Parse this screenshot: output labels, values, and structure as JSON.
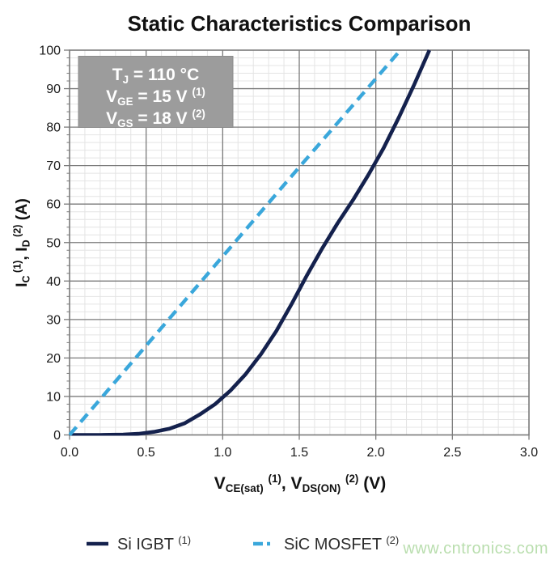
{
  "title": "Static Characteristics Comparison",
  "watermark": {
    "text": "www.cntronics.com",
    "color": "#a8d69a"
  },
  "colors": {
    "si_igbt": "#14214d",
    "sic_mosfet": "#3aa7db",
    "grid_minor": "#e4e4e4",
    "grid_major": "#7a7a7a",
    "plot_border": "#7a7a7a",
    "annotation_bg": "#9c9c9c",
    "annotation_text": "#ffffff",
    "tick_label": "#1a1a1a",
    "axis_title": "#111111",
    "legend_text": "#2d2d2d"
  },
  "chart_data": {
    "type": "line",
    "title": "Static Characteristics Comparison",
    "xlabel": "V_CE(sat) (1), V_DS(ON) (2) (V)",
    "ylabel": "I_C (1), I_D (2) (A)",
    "xlabel_parts": [
      {
        "t": "V"
      },
      {
        "t": "CE(sat)",
        "sub": true
      },
      {
        "t": " "
      },
      {
        "t": "(1)",
        "sup": true
      },
      {
        "t": ", V"
      },
      {
        "t": "DS(ON)",
        "sub": true
      },
      {
        "t": " "
      },
      {
        "t": "(2)",
        "sup": true
      },
      {
        "t": " (V)"
      }
    ],
    "ylabel_parts": [
      {
        "t": "I"
      },
      {
        "t": "C",
        "sub": true
      },
      {
        "t": " (1)",
        "sup": true
      },
      {
        "t": ", I"
      },
      {
        "t": "D",
        "sub": true
      },
      {
        "t": " (2)",
        "sup": true
      },
      {
        "t": " (A)"
      }
    ],
    "xlim": [
      0,
      3.0
    ],
    "ylim": [
      0,
      100
    ],
    "x_ticks": [
      0.0,
      0.5,
      1.0,
      1.5,
      2.0,
      2.5,
      3.0
    ],
    "y_ticks": [
      0,
      10,
      20,
      30,
      40,
      50,
      60,
      70,
      80,
      90,
      100
    ],
    "x_minor_step": 0.1,
    "y_minor_step": 2,
    "grid": "major+minor",
    "legend_position": "bottom",
    "annotation": {
      "bg_color": "#9c9c9c",
      "text_color": "#ffffff",
      "lines": [
        {
          "plain": "T_J = 110 °C",
          "parts": [
            {
              "t": "T"
            },
            {
              "t": "J",
              "sub": true
            },
            {
              "t": " = 110 °C"
            }
          ]
        },
        {
          "plain": "V_GE = 15 V (1)",
          "parts": [
            {
              "t": "V"
            },
            {
              "t": "GE",
              "sub": true
            },
            {
              "t": " = 15 V "
            },
            {
              "t": "(1)",
              "sup": true
            }
          ]
        },
        {
          "plain": "V_GS = 18 V (2)",
          "parts": [
            {
              "t": "V"
            },
            {
              "t": "GS",
              "sub": true
            },
            {
              "t": " = 18 V "
            },
            {
              "t": "(2)",
              "sup": true
            }
          ]
        }
      ]
    },
    "series": [
      {
        "name": "Si IGBT (1)",
        "name_parts": [
          {
            "t": "Si IGBT "
          },
          {
            "t": "(1)",
            "sup": true
          }
        ],
        "color": "#14214d",
        "line_style": "solid",
        "line_width": 4.6,
        "points": [
          [
            0,
            0
          ],
          [
            0.2,
            0
          ],
          [
            0.35,
            0.1
          ],
          [
            0.45,
            0.3
          ],
          [
            0.55,
            0.8
          ],
          [
            0.65,
            1.6
          ],
          [
            0.75,
            3.0
          ],
          [
            0.85,
            5.3
          ],
          [
            0.95,
            8.0
          ],
          [
            1.05,
            11.5
          ],
          [
            1.15,
            15.8
          ],
          [
            1.25,
            21.0
          ],
          [
            1.35,
            27.0
          ],
          [
            1.45,
            34.0
          ],
          [
            1.55,
            41.5
          ],
          [
            1.65,
            48.5
          ],
          [
            1.75,
            55.0
          ],
          [
            1.85,
            61.0
          ],
          [
            1.95,
            67.5
          ],
          [
            2.05,
            74.5
          ],
          [
            2.15,
            82.5
          ],
          [
            2.25,
            91.0
          ],
          [
            2.35,
            100
          ]
        ]
      },
      {
        "name": "SiC MOSFET (2)",
        "name_parts": [
          {
            "t": "SiC MOSFET "
          },
          {
            "t": "(2)",
            "sup": true
          }
        ],
        "color": "#3aa7db",
        "line_style": "dashed",
        "line_width": 4.4,
        "points": [
          [
            0,
            0
          ],
          [
            0.5,
            23.2
          ],
          [
            1.0,
            46.4
          ],
          [
            1.5,
            69.6
          ],
          [
            2.0,
            92.6
          ],
          [
            2.16,
            100
          ]
        ]
      }
    ]
  }
}
